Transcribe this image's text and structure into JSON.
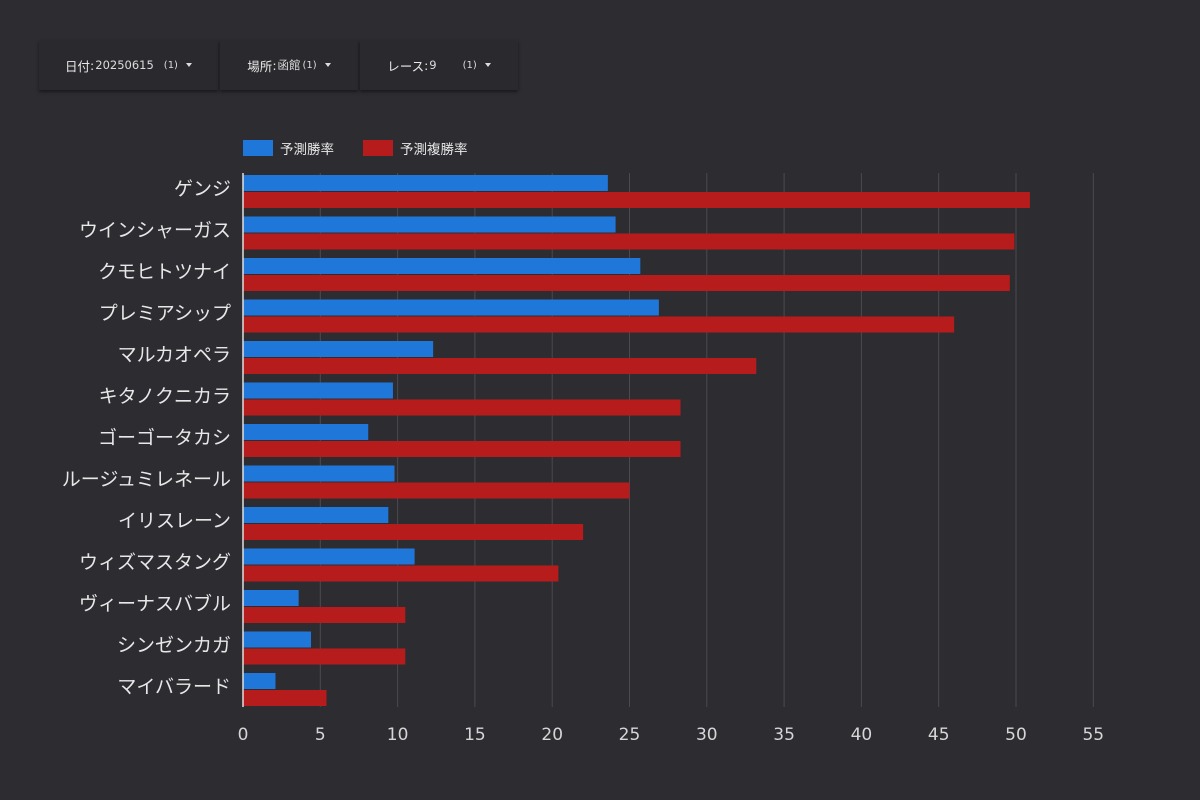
{
  "filters": [
    {
      "label": "日付",
      "value": "20250615",
      "count": "(1)"
    },
    {
      "label": "場所",
      "value": "函館",
      "count": "(1)"
    },
    {
      "label": "レース",
      "value": "9",
      "count": "(1)"
    }
  ],
  "chart_data": {
    "type": "bar",
    "orientation": "horizontal",
    "categories": [
      "ゲンジ",
      "ウインシャーガス",
      "クモヒトツナイ",
      "プレミアシップ",
      "マルカオペラ",
      "キタノクニカラ",
      "ゴーゴータカシ",
      "ルージュミレネール",
      "イリスレーン",
      "ウィズマスタング",
      "ヴィーナスバブル",
      "シンゼンカガ",
      "マイバラード"
    ],
    "series": [
      {
        "name": "予測勝率",
        "color": "#1f77d9",
        "values": [
          23.6,
          24.1,
          25.7,
          26.9,
          12.3,
          9.7,
          8.1,
          9.8,
          9.4,
          11.1,
          3.6,
          4.4,
          2.1
        ]
      },
      {
        "name": "予測複勝率",
        "color": "#b71c1c",
        "values": [
          50.9,
          49.9,
          49.6,
          46.0,
          33.2,
          28.3,
          28.3,
          25.0,
          22.0,
          20.4,
          10.5,
          10.5,
          5.4
        ]
      }
    ],
    "xlim": [
      0,
      55
    ],
    "xticks": [
      0,
      5,
      10,
      15,
      20,
      25,
      30,
      35,
      40,
      45,
      50,
      55
    ],
    "grid": true,
    "legend_position": "top-left"
  }
}
